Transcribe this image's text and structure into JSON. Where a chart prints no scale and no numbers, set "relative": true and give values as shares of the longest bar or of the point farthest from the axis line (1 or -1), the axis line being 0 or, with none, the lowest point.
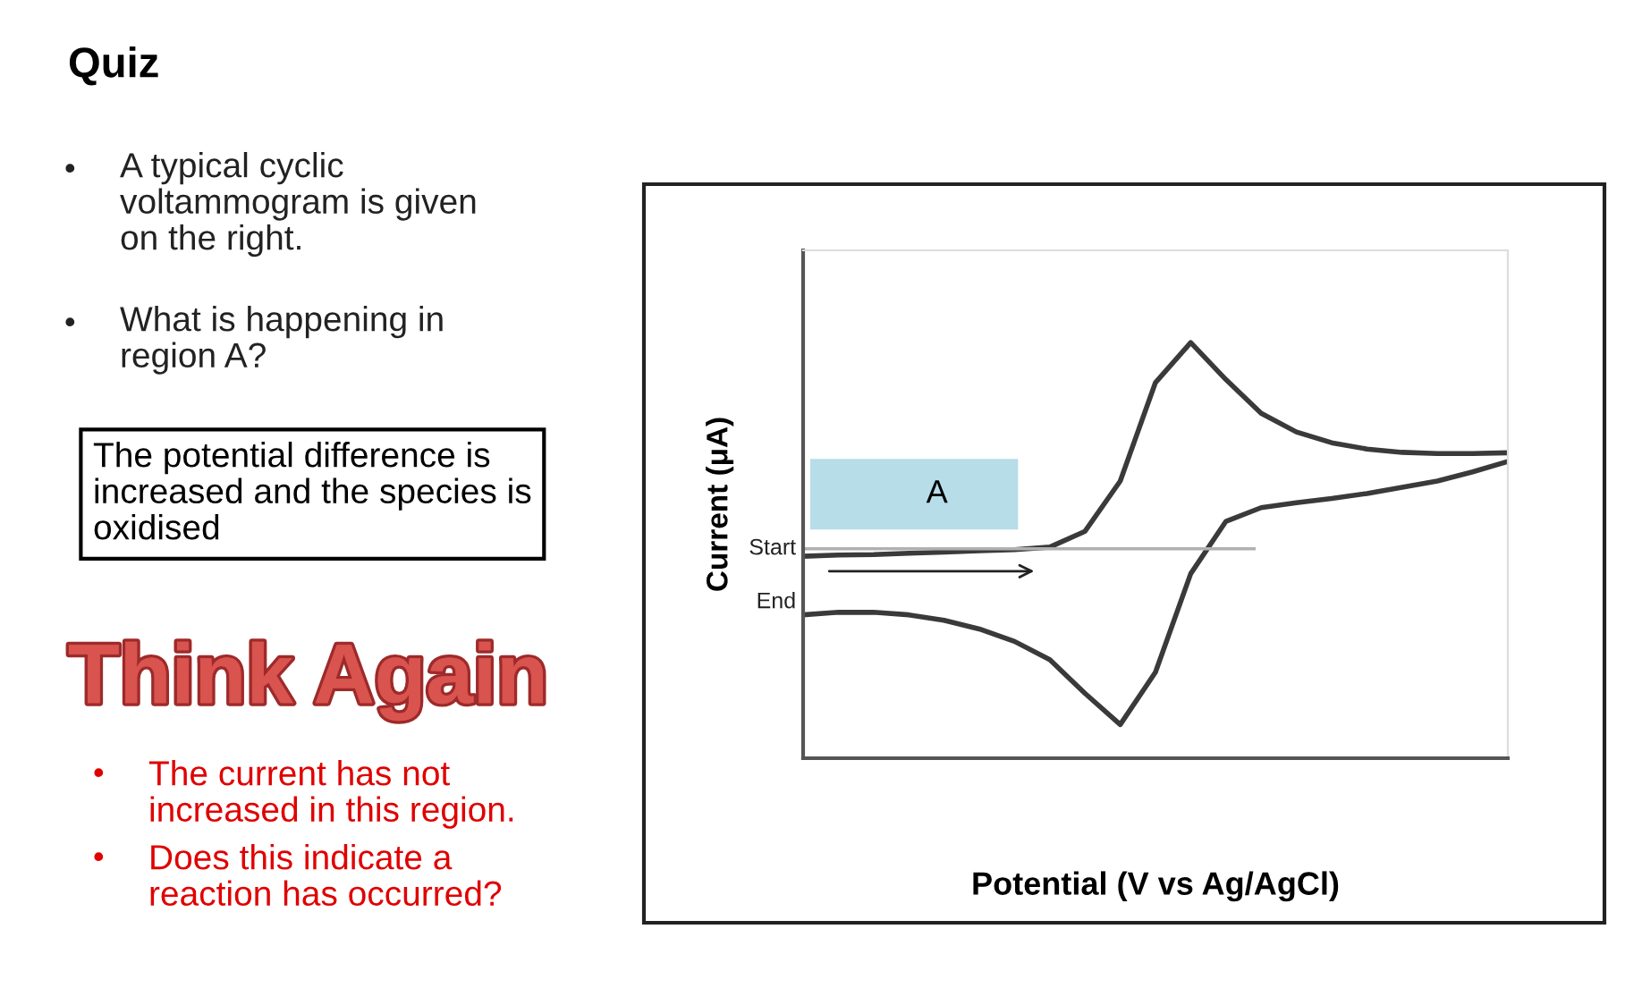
{
  "chart_data": {
    "type": "line",
    "title": "Quiz",
    "xlabel": "Potential (V vs Ag/AgCl)",
    "ylabel": "Current (μA)",
    "relative": true,
    "grid": false,
    "marker": "none",
    "line_style": "solid",
    "categories": [
      null,
      null,
      null,
      null,
      null,
      null,
      null,
      null,
      null,
      null,
      null,
      null,
      null,
      null,
      null,
      null,
      null,
      null,
      null,
      null,
      null
    ],
    "series": [
      {
        "color": "#3a3a3a",
        "values": [
          0.486,
          0.489,
          0.49,
          0.493,
          0.496,
          0.499,
          0.502,
          0.508,
          0.546,
          0.667,
          0.904,
          1.0,
          0.911,
          0.83,
          0.785,
          0.759,
          0.744,
          0.736,
          0.733,
          0.733,
          0.735
        ]
      },
      {
        "color": "#3a3a3a",
        "values": [
          0.345,
          0.351,
          0.351,
          0.345,
          0.332,
          0.311,
          0.281,
          0.237,
          0.156,
          0.081,
          0.207,
          0.444,
          0.57,
          0.603,
          0.615,
          0.625,
          0.637,
          0.652,
          0.667,
          0.689,
          0.714
        ]
      }
    ],
    "ref_lines": [
      {
        "axis": "y",
        "value": 0.504,
        "label": "Start",
        "color": "#b0b0b0"
      }
    ],
    "annotations": [
      "A typical cyclic\nvoltammogram is given\non the right.",
      "What is happening in\nregion A?",
      "The potential difference is\nincreased and the species is\noxidised",
      "Think Again",
      "The current has not\nincreased in this region.",
      "Does this indicate a\nreaction has occurred?",
      "A",
      "End",
      "•",
      "•",
      "•",
      "•"
    ]
  }
}
